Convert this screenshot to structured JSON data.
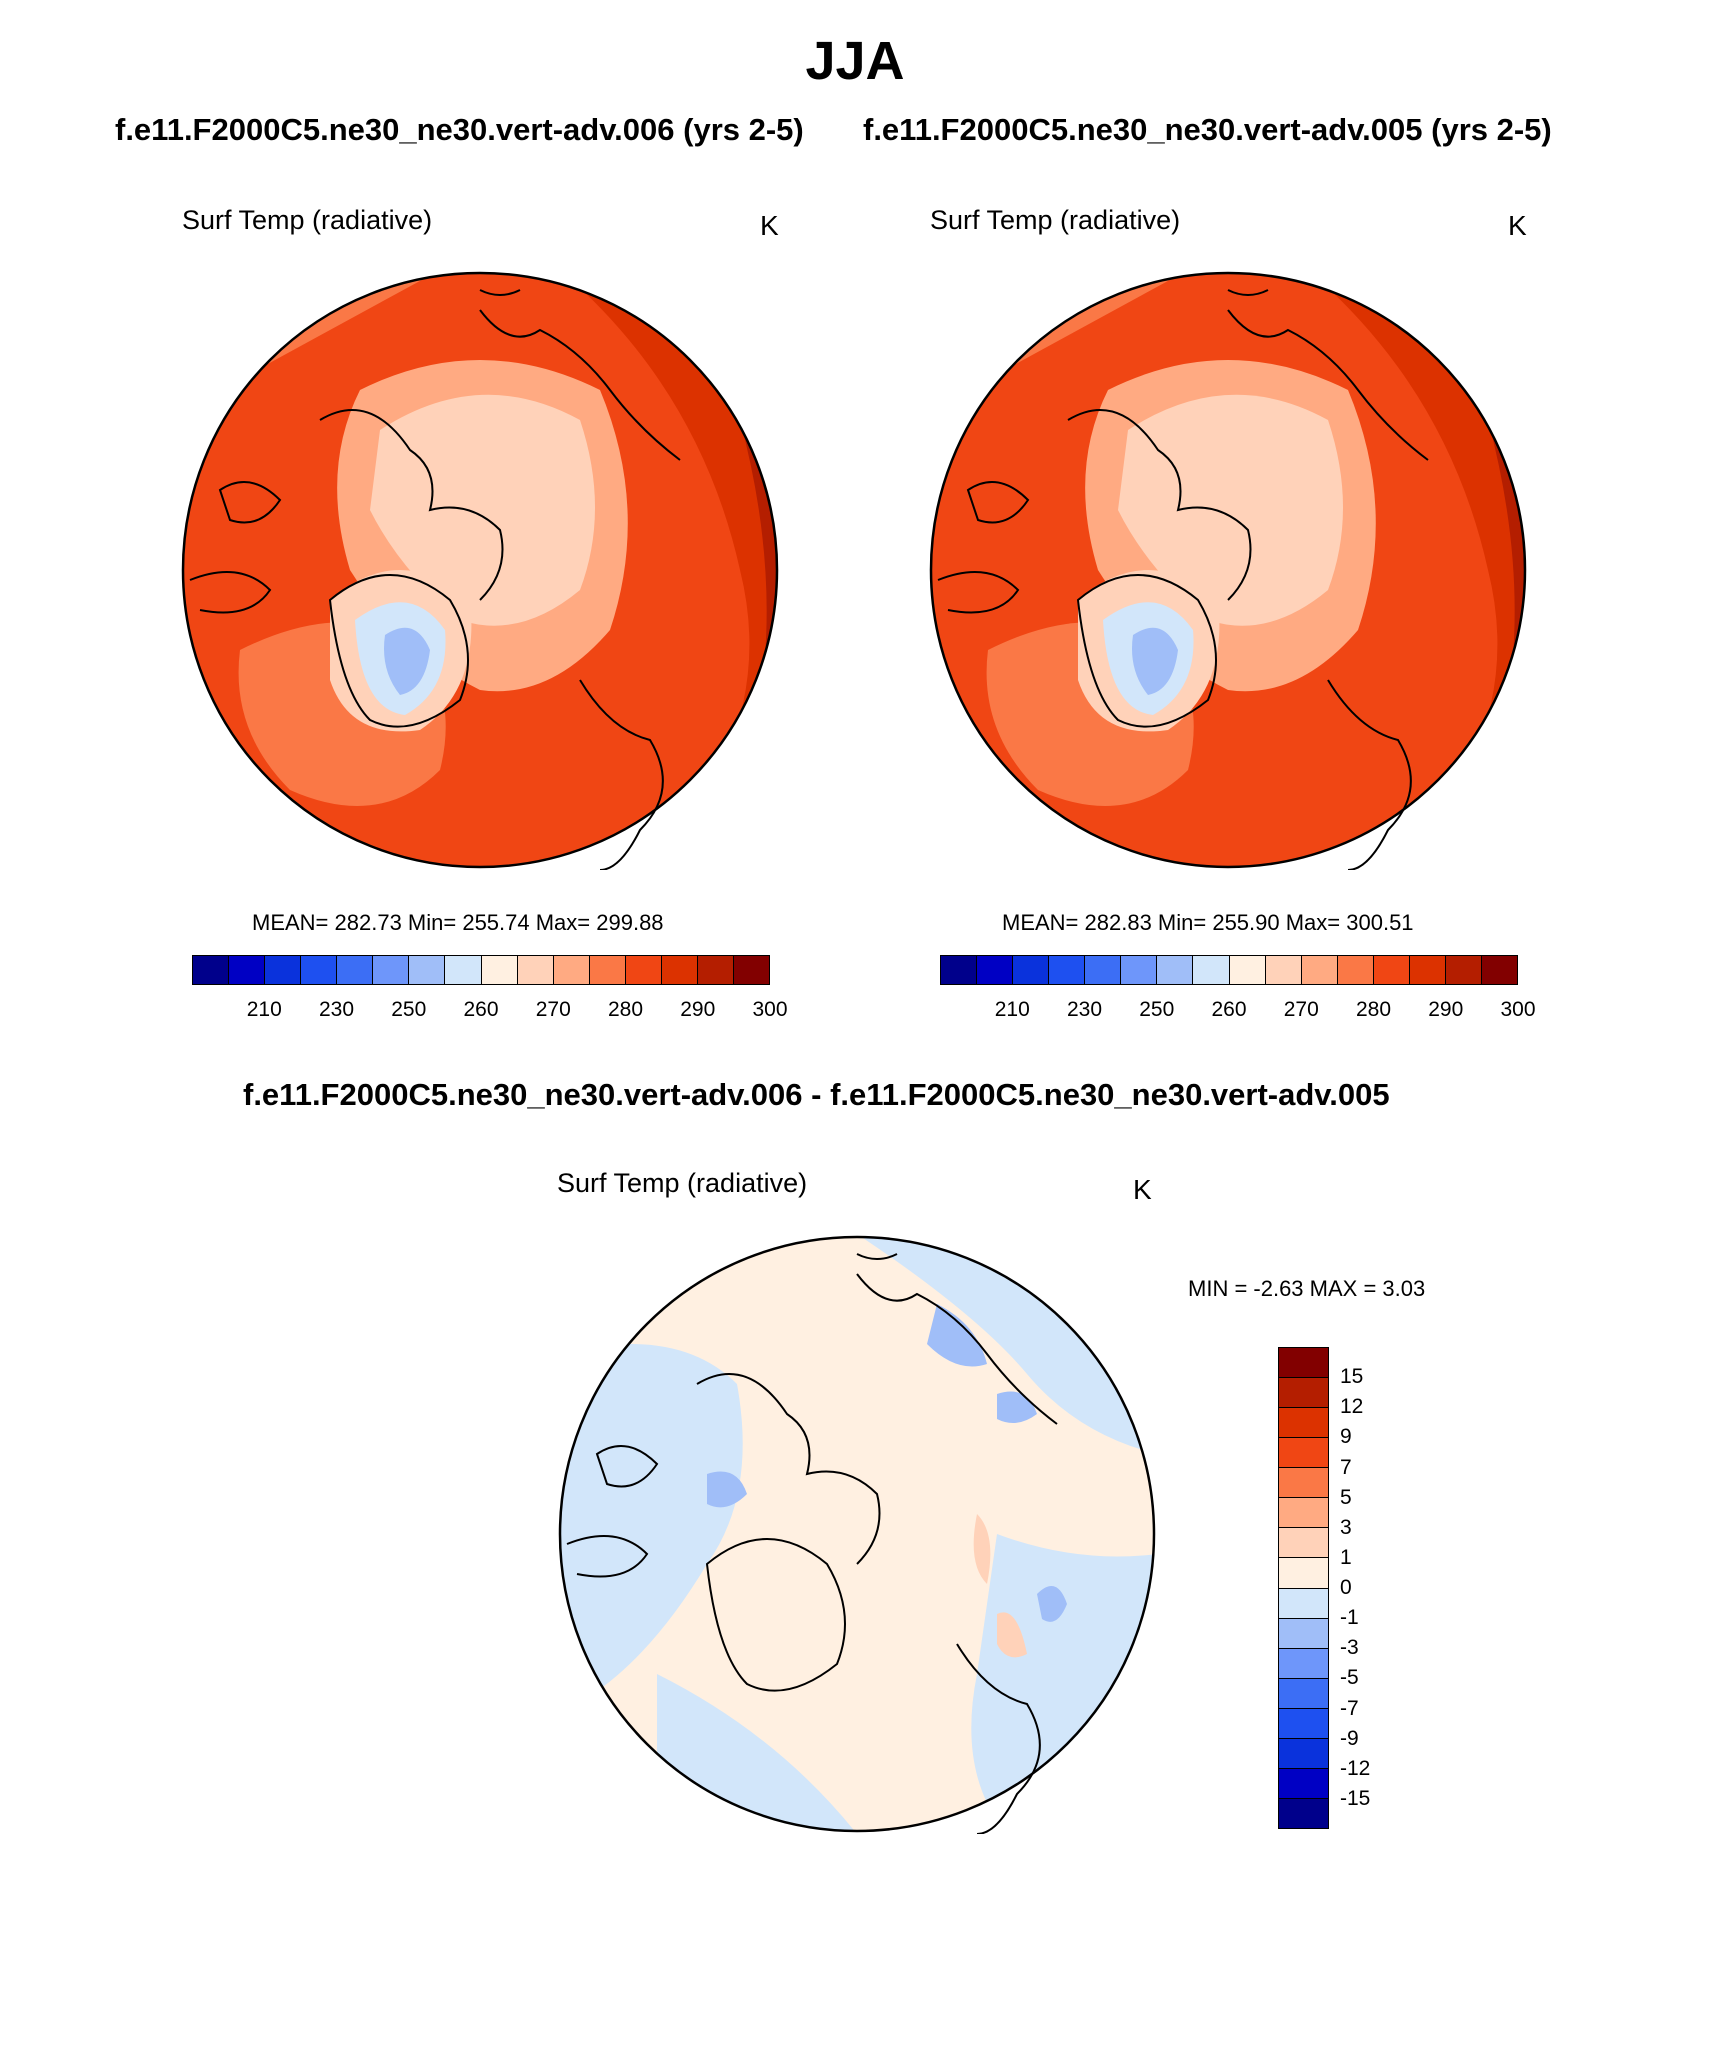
{
  "title": "JJA",
  "case_label_left": "f.e11.F2000C5.ne30_ne30.vert-adv.006 (yrs 2-5)",
  "case_label_right": "f.e11.F2000C5.ne30_ne30.vert-adv.005 (yrs 2-5)",
  "diff_label": "f.e11.F2000C5.ne30_ne30.vert-adv.006 - f.e11.F2000C5.ne30_ne30.vert-adv.005",
  "panels": {
    "left": {
      "variable": "Surf Temp (radiative)",
      "units": "K",
      "stats": "MEAN= 282.73  Min= 255.74  Max= 299.88"
    },
    "right": {
      "variable": "Surf Temp (radiative)",
      "units": "K",
      "stats": "MEAN= 282.83  Min= 255.90  Max= 300.51"
    },
    "diff": {
      "variable": "Surf Temp (radiative)",
      "units": "K",
      "stats": "MIN =  -2.63 MAX =   3.03"
    }
  },
  "abs_colorbar": {
    "colors": [
      "#00008b",
      "#0000c4",
      "#0a32dc",
      "#1e50f0",
      "#3c6ef5",
      "#6e96fa",
      "#a0bef8",
      "#d2e6fa",
      "#fff0e1",
      "#ffd2b9",
      "#ffaa82",
      "#fa7846",
      "#f04614",
      "#dc3200",
      "#b41e00",
      "#820000"
    ],
    "tick_labels": [
      "210",
      "230",
      "250",
      "260",
      "270",
      "280",
      "290",
      "300"
    ]
  },
  "diff_colorbar": {
    "colors": [
      "#820000",
      "#b41e00",
      "#dc3200",
      "#f04614",
      "#fa7846",
      "#ffaa82",
      "#ffd2b9",
      "#fff0e1",
      "#d2e6fa",
      "#a0bef8",
      "#6e96fa",
      "#3c6ef5",
      "#1e50f0",
      "#0a32dc",
      "#0000c4",
      "#00008b"
    ],
    "tick_labels": [
      "15",
      "12",
      "9",
      "7",
      "5",
      "3",
      "1",
      "0",
      "-1",
      "-3",
      "-5",
      "-7",
      "-9",
      "-12",
      "-15"
    ]
  }
}
